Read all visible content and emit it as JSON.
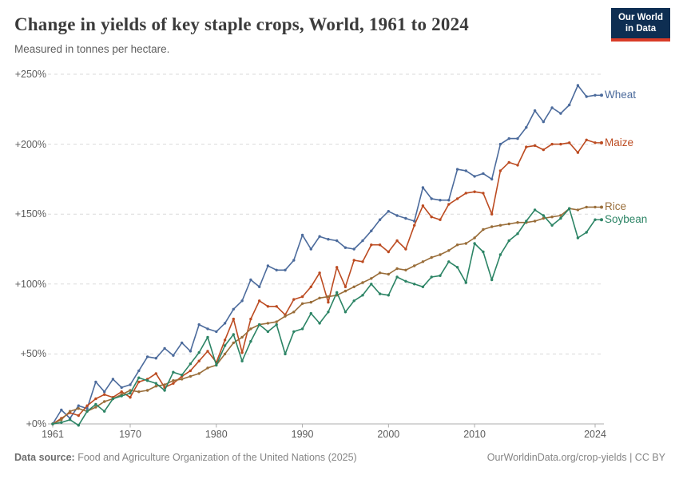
{
  "header": {
    "title": "Change in yields of key staple crops, World, 1961 to 2024",
    "subtitle": "Measured in tonnes per hectare.",
    "logo": {
      "line1": "Our World",
      "line2": "in Data"
    }
  },
  "chart_data": {
    "type": "line",
    "title": "Change in yields of key staple crops, World, 1961 to 2024",
    "xlabel": "",
    "ylabel": "",
    "grid": true,
    "legend_position": "right-end-labels",
    "xlim": [
      1961,
      2024
    ],
    "ylim": [
      0,
      250
    ],
    "y_ticks": [
      {
        "value": 0,
        "label": "+0%"
      },
      {
        "value": 50,
        "label": "+50%"
      },
      {
        "value": 100,
        "label": "+100%"
      },
      {
        "value": 150,
        "label": "+150%"
      },
      {
        "value": 200,
        "label": "+200%"
      },
      {
        "value": 250,
        "label": "+250%"
      }
    ],
    "x_ticks": [
      {
        "value": 1961,
        "label": "1961"
      },
      {
        "value": 1970,
        "label": "1970"
      },
      {
        "value": 1980,
        "label": "1980"
      },
      {
        "value": 1990,
        "label": "1990"
      },
      {
        "value": 2000,
        "label": "2000"
      },
      {
        "value": 2010,
        "label": "2010"
      },
      {
        "value": 2024,
        "label": "2024"
      }
    ],
    "x": [
      1961,
      1962,
      1963,
      1964,
      1965,
      1966,
      1967,
      1968,
      1969,
      1970,
      1971,
      1972,
      1973,
      1974,
      1975,
      1976,
      1977,
      1978,
      1979,
      1980,
      1981,
      1982,
      1983,
      1984,
      1985,
      1986,
      1987,
      1988,
      1989,
      1990,
      1991,
      1992,
      1993,
      1994,
      1995,
      1996,
      1997,
      1998,
      1999,
      2000,
      2001,
      2002,
      2003,
      2004,
      2005,
      2006,
      2007,
      2008,
      2009,
      2010,
      2011,
      2012,
      2013,
      2014,
      2015,
      2016,
      2017,
      2018,
      2019,
      2020,
      2021,
      2022,
      2023,
      2024
    ],
    "series": [
      {
        "name": "Wheat",
        "color": "#4c6b9c",
        "values": [
          0,
          10,
          4,
          13,
          11,
          30,
          23,
          32,
          26,
          28,
          38,
          48,
          47,
          54,
          49,
          58,
          52,
          71,
          68,
          66,
          72,
          82,
          88,
          103,
          98,
          113,
          110,
          110,
          117,
          135,
          125,
          134,
          132,
          131,
          126,
          125,
          131,
          138,
          146,
          152,
          149,
          147,
          145,
          169,
          161,
          160,
          160,
          182,
          181,
          177,
          179,
          175,
          200,
          204,
          204,
          212,
          224,
          216,
          226,
          222,
          228,
          242,
          234,
          235
        ]
      },
      {
        "name": "Maize",
        "color": "#bc4b21",
        "values": [
          0,
          4,
          8,
          6,
          13,
          18,
          21,
          19,
          23,
          19,
          30,
          32,
          36,
          26,
          29,
          34,
          38,
          45,
          52,
          44,
          60,
          75,
          51,
          75,
          88,
          84,
          84,
          78,
          89,
          91,
          98,
          108,
          87,
          112,
          98,
          117,
          116,
          128,
          128,
          123,
          131,
          125,
          142,
          156,
          148,
          146,
          157,
          161,
          165,
          166,
          165,
          150,
          181,
          187,
          185,
          198,
          199,
          196,
          200,
          200,
          201,
          194,
          203,
          201
        ]
      },
      {
        "name": "Rice",
        "color": "#996d39",
        "values": [
          0,
          3,
          9,
          11,
          9,
          12,
          16,
          18,
          21,
          24,
          23,
          24,
          27,
          28,
          31,
          32,
          34,
          36,
          40,
          42,
          50,
          58,
          62,
          68,
          71,
          72,
          73,
          77,
          80,
          86,
          87,
          90,
          91,
          92,
          95,
          98,
          101,
          104,
          108,
          107,
          111,
          110,
          113,
          116,
          119,
          121,
          124,
          128,
          129,
          133,
          139,
          141,
          142,
          143,
          144,
          144,
          145,
          147,
          148,
          149,
          154,
          153,
          155,
          155
        ]
      },
      {
        "name": "Soybean",
        "color": "#2c8465",
        "values": [
          0,
          1,
          3,
          -1,
          9,
          14,
          9,
          18,
          20,
          22,
          33,
          31,
          29,
          24,
          37,
          35,
          43,
          51,
          62,
          42,
          56,
          64,
          45,
          59,
          71,
          66,
          71,
          50,
          66,
          68,
          79,
          72,
          80,
          94,
          80,
          88,
          92,
          100,
          93,
          92,
          105,
          102,
          100,
          98,
          105,
          106,
          116,
          112,
          101,
          129,
          123,
          103,
          121,
          131,
          136,
          145,
          153,
          149,
          142,
          147,
          154,
          133,
          137,
          146
        ]
      }
    ],
    "colors": {
      "grid": "#dadada",
      "axis": "#adadad",
      "tick_text": "#5b5b5b",
      "logo_bg": "#0e2e52",
      "logo_accent": "#d93b27"
    }
  },
  "footer": {
    "source_label": "Data source:",
    "source_text": " Food and Agriculture Organization of the United Nations (2025)",
    "link": "OurWorldinData.org/crop-yields",
    "separator": " | ",
    "license": "CC BY"
  }
}
